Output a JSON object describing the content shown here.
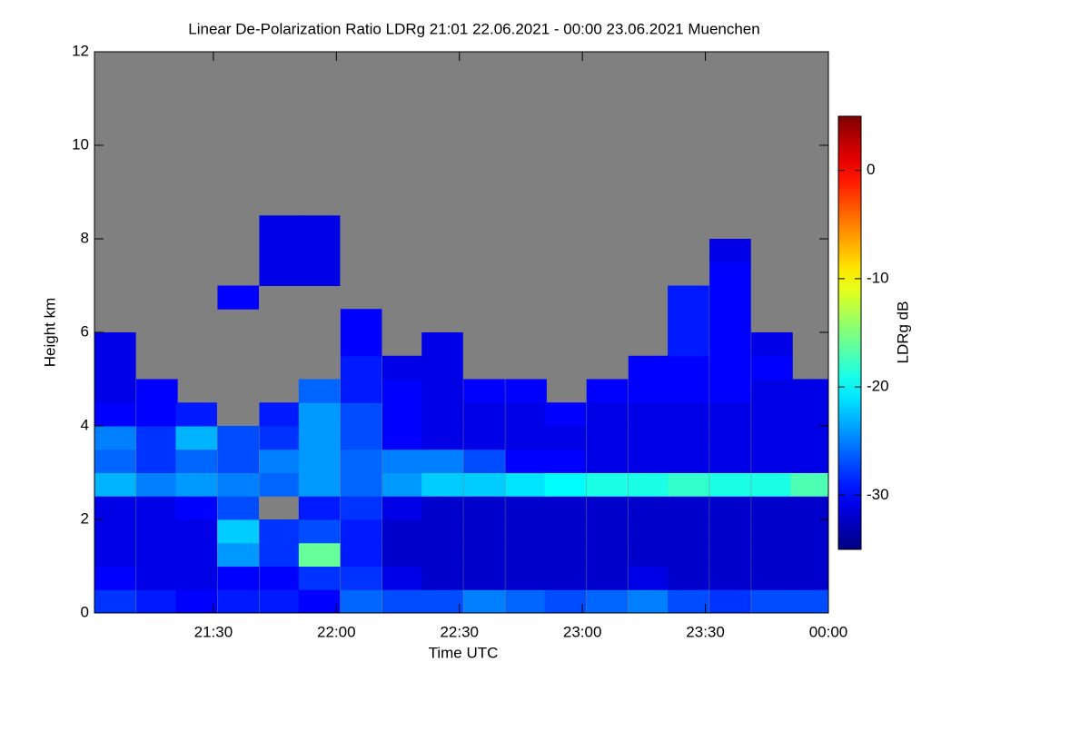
{
  "chart_data": {
    "type": "heatmap",
    "title": "Linear De-Polarization Ratio LDRg   21:01 22.06.2021 - 00:00 23.06.2021 Muenchen",
    "x_label": "Time UTC",
    "y_label": "Height km",
    "colorbar_label": "LDRg dB",
    "colorscale": "jet",
    "missing_color": "#808080",
    "x": [
      21.1,
      21.27,
      21.43,
      21.6,
      21.77,
      21.93,
      22.1,
      22.27,
      22.43,
      22.6,
      22.77,
      22.93,
      23.1,
      23.27,
      23.43,
      23.6,
      23.77,
      23.93
    ],
    "y": [
      0.25,
      0.75,
      1.25,
      1.75,
      2.25,
      2.75,
      3.25,
      3.75,
      4.25,
      4.75,
      5.25,
      5.75,
      6.25,
      6.75,
      7.25,
      7.75,
      8.25
    ],
    "z": [
      [
        -28,
        -29,
        -30,
        -29,
        -29,
        -30,
        -26,
        -27,
        -27,
        -25,
        -26,
        -27,
        -26,
        -25,
        -27,
        -28,
        -27,
        -27
      ],
      [
        -30,
        -31,
        -31,
        -30,
        -30,
        -28,
        -28,
        -31,
        -32,
        -32,
        -32,
        -32,
        -32,
        -31,
        -32,
        -32,
        -32,
        -32
      ],
      [
        -31,
        -31,
        -31,
        -24,
        -28,
        -16,
        -29,
        -32,
        -32,
        -32,
        -32,
        -32,
        -32,
        -32,
        -32,
        -32,
        -32,
        -32
      ],
      [
        -31,
        -31,
        -31,
        -22,
        -28,
        -27,
        -29,
        -32,
        -32,
        -32,
        -32,
        -32,
        -32,
        -32,
        -32,
        -32,
        -32,
        -32
      ],
      [
        -31,
        -31,
        -30,
        -27,
        null,
        -29,
        -28,
        -31,
        -32,
        -32,
        -32,
        -32,
        -32,
        -32,
        -32,
        -32,
        -32,
        -32
      ],
      [
        -23,
        -25,
        -24,
        -25,
        -26,
        -24,
        -26,
        -24,
        -22,
        -22,
        -21,
        -20,
        -19,
        -19,
        -18,
        -19,
        -19,
        -17
      ],
      [
        -26,
        -28,
        -26,
        -27,
        -25,
        -24,
        -26,
        -25,
        -25,
        -27,
        -30,
        -30,
        -31,
        -31,
        -31,
        -31,
        -31,
        -31
      ],
      [
        -25,
        -28,
        -23,
        -27,
        -28,
        -24,
        -27,
        -30,
        -31,
        -31,
        -31,
        -31,
        -31,
        -31,
        -31,
        -31,
        -31,
        -31
      ],
      [
        -30,
        -30,
        -29,
        null,
        -29,
        -24,
        -27,
        -30,
        -31,
        -31,
        -31,
        -30,
        -31,
        -31,
        -31,
        -31,
        -31,
        -31
      ],
      [
        -31,
        -30,
        null,
        null,
        null,
        -26,
        -29,
        -30,
        -31,
        -30,
        -30,
        null,
        -30,
        -30,
        -30,
        -30,
        -31,
        -31
      ],
      [
        -31,
        null,
        null,
        null,
        null,
        null,
        -29,
        -31,
        -31,
        null,
        null,
        null,
        null,
        -30,
        -30,
        -30,
        -30,
        null
      ],
      [
        -31,
        null,
        null,
        null,
        null,
        null,
        -30,
        null,
        -31,
        null,
        null,
        null,
        null,
        null,
        -29,
        -30,
        -31,
        null
      ],
      [
        null,
        null,
        null,
        null,
        null,
        null,
        -30,
        null,
        null,
        null,
        null,
        null,
        null,
        null,
        -29,
        -30,
        null,
        null
      ],
      [
        null,
        null,
        null,
        -30,
        null,
        null,
        null,
        null,
        null,
        null,
        null,
        null,
        null,
        null,
        -29,
        -30,
        null,
        null
      ],
      [
        null,
        null,
        null,
        null,
        -31,
        -31,
        null,
        null,
        null,
        null,
        null,
        null,
        null,
        null,
        null,
        -30,
        null,
        null
      ],
      [
        null,
        null,
        null,
        null,
        -31,
        -31,
        null,
        null,
        null,
        null,
        null,
        null,
        null,
        null,
        null,
        -31,
        null,
        null
      ],
      [
        null,
        null,
        null,
        null,
        -31,
        -31,
        null,
        null,
        null,
        null,
        null,
        null,
        null,
        null,
        null,
        null,
        null,
        null
      ]
    ],
    "xlim": [
      21.0167,
      24
    ],
    "xticks": [
      {
        "value": 21.5,
        "label": "21:30"
      },
      {
        "value": 22,
        "label": "22:00"
      },
      {
        "value": 22.5,
        "label": "22:30"
      },
      {
        "value": 23,
        "label": "23:00"
      },
      {
        "value": 23.5,
        "label": "23:30"
      },
      {
        "value": 24,
        "label": "00:00"
      }
    ],
    "ylim": [
      0,
      12
    ],
    "yticks": [
      0,
      2,
      4,
      6,
      8,
      10,
      12
    ],
    "zlim": [
      -35,
      5
    ],
    "zticks": [
      -30,
      -20,
      -10,
      0
    ]
  }
}
